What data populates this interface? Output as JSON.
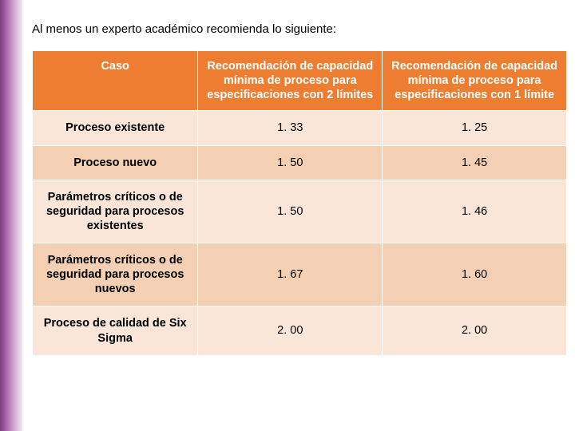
{
  "intro": "Al menos un experto académico recomienda lo siguiente:",
  "table": {
    "type": "table",
    "header_bg": "#ed7d31",
    "header_text_color": "#ffffff",
    "row_colors": [
      "#f9e6d8",
      "#f3d0b3"
    ],
    "border_color": "#ffffff",
    "font_family": "Tahoma",
    "header_fontsize": 14.5,
    "cell_fontsize": 14.5,
    "column_widths_pct": [
      31,
      34.5,
      34.5
    ],
    "columns": [
      "Caso",
      "Recomendación de capacidad mínima de proceso para especificaciones con 2 límites",
      "Recomendación de capacidad mínima de proceso para especificaciones con 1 límite"
    ],
    "rows": [
      [
        "Proceso existente",
        "1. 33",
        "1. 25"
      ],
      [
        "Proceso nuevo",
        "1. 50",
        "1. 45"
      ],
      [
        "Parámetros críticos o de seguridad para procesos existentes",
        "1. 50",
        "1. 46"
      ],
      [
        "Parámetros críticos o de seguridad para procesos nuevos",
        "1. 67",
        "1. 60"
      ],
      [
        "Proceso de calidad de Six Sigma",
        "2. 00",
        "2. 00"
      ]
    ]
  },
  "sidebar_gradient": [
    "#7a3d7a",
    "#9b5a9b",
    "#b67db6",
    "#cda4cd",
    "#e0c8e0",
    "#f0e4f0"
  ],
  "background_color": "#ffffff"
}
